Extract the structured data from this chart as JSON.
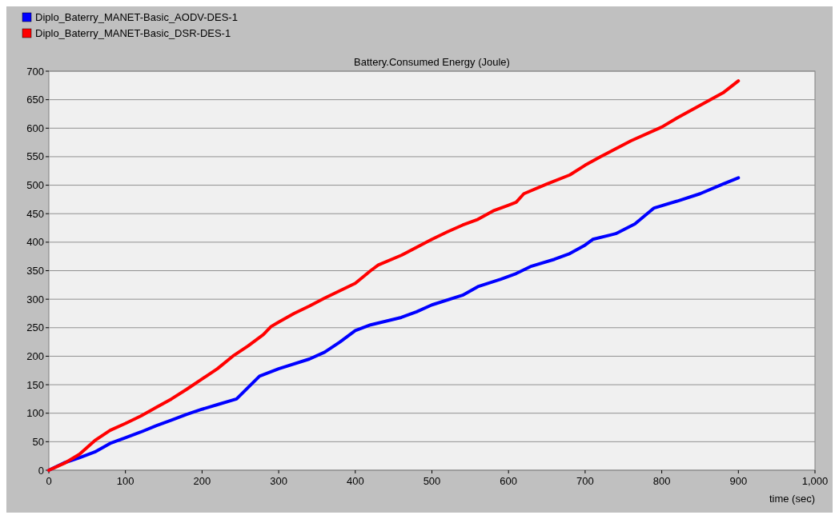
{
  "chart_data": {
    "type": "line",
    "title": "Battery.Consumed Energy (Joule)",
    "xlabel": "time (sec)",
    "xlim": [
      0,
      1000
    ],
    "xticks": [
      0,
      100,
      200,
      300,
      400,
      500,
      600,
      700,
      800,
      900,
      {
        "value": 1000,
        "label": "1,000"
      }
    ],
    "ylim": [
      0,
      700
    ],
    "yticks": [
      0,
      50,
      100,
      150,
      200,
      250,
      300,
      350,
      400,
      450,
      500,
      550,
      600,
      650,
      700
    ],
    "grid": "y",
    "legend": "top left",
    "marker": "none",
    "line_style": "solid",
    "series": [
      {
        "name": "Diplo_Baterry_MANET-Basic_AODV-DES-1",
        "color": "#0000ff",
        "x": [
          0,
          20,
          40,
          60,
          80,
          100,
          120,
          140,
          160,
          180,
          200,
          220,
          245,
          260,
          275,
          300,
          340,
          360,
          380,
          400,
          420,
          460,
          480,
          500,
          540,
          560,
          590,
          610,
          630,
          660,
          680,
          700,
          710,
          740,
          765,
          790,
          820,
          850,
          880,
          900
        ],
        "values": [
          0,
          13,
          22,
          32,
          47,
          57,
          67,
          78,
          88,
          98,
          107,
          115,
          125,
          145,
          165,
          178,
          195,
          207,
          225,
          245,
          255,
          268,
          278,
          290,
          307,
          322,
          335,
          345,
          358,
          370,
          380,
          395,
          405,
          415,
          432,
          460,
          472,
          485,
          502,
          513
        ]
      },
      {
        "name": "Diplo_Baterry_MANET-Basic_DSR-DES-1",
        "color": "#ff0000",
        "x": [
          0,
          20,
          40,
          60,
          80,
          100,
          120,
          140,
          160,
          180,
          200,
          220,
          240,
          260,
          280,
          290,
          300,
          320,
          340,
          360,
          380,
          400,
          420,
          430,
          460,
          500,
          520,
          540,
          560,
          580,
          600,
          610,
          620,
          650,
          680,
          700,
          720,
          760,
          800,
          820,
          850,
          880,
          900
        ],
        "values": [
          0,
          12,
          28,
          52,
          70,
          82,
          95,
          110,
          125,
          142,
          160,
          178,
          200,
          218,
          238,
          252,
          260,
          275,
          288,
          302,
          315,
          328,
          350,
          360,
          377,
          405,
          418,
          430,
          440,
          455,
          465,
          470,
          485,
          502,
          518,
          535,
          550,
          578,
          602,
          618,
          640,
          662,
          683
        ]
      }
    ]
  }
}
